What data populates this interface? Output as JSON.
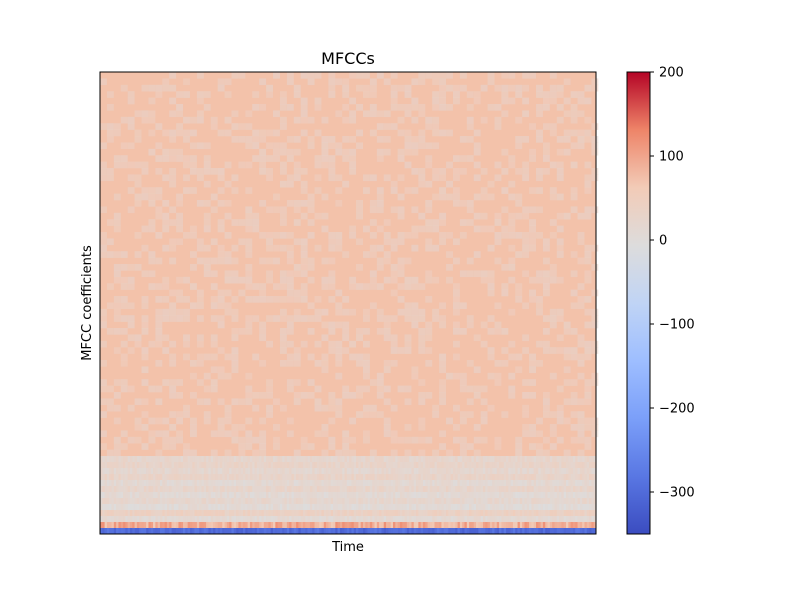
{
  "chart_data": {
    "type": "heatmap",
    "title": "MFCCs",
    "xlabel": "Time",
    "ylabel": "MFCC coefficients",
    "colormap": "coolwarm",
    "color_min": -350,
    "color_max": 200,
    "colorbar_ticks": [
      200,
      100,
      0,
      -100,
      -200,
      -300
    ],
    "colorbar_tick_labels": [
      "200",
      "100",
      "0",
      "−100",
      "−200",
      "−300"
    ],
    "x_ticks": [],
    "y_ticks": [],
    "grid": false,
    "colorbar_position": "right",
    "n_coefficients": 13,
    "n_frames": 215,
    "coefficient_mean_values": [
      -300,
      90,
      10,
      40,
      5,
      20,
      8,
      25,
      12,
      30,
      18,
      28,
      22
    ],
    "background_level": 30
  }
}
